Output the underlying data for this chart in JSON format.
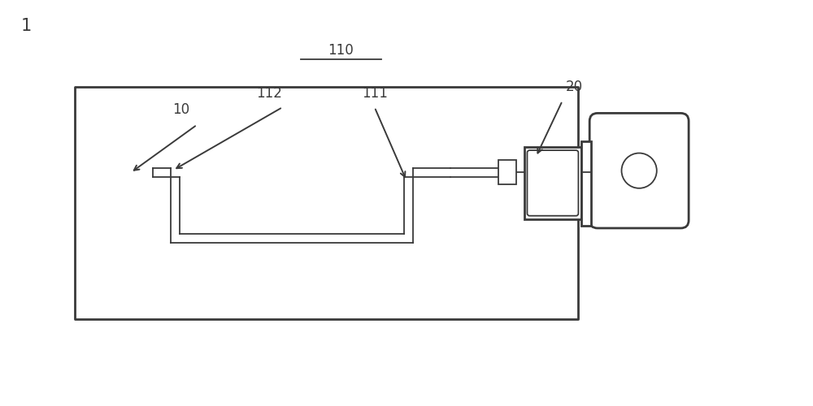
{
  "bg_color": "#ffffff",
  "line_color": "#3a3a3a",
  "lw_outer": 2.0,
  "lw_inner": 1.3,
  "label_1": "1",
  "label_10": "10",
  "label_20": "20",
  "label_110": "110",
  "label_111": "111",
  "label_112": "112",
  "fig_w": 10.0,
  "fig_h": 5.0
}
